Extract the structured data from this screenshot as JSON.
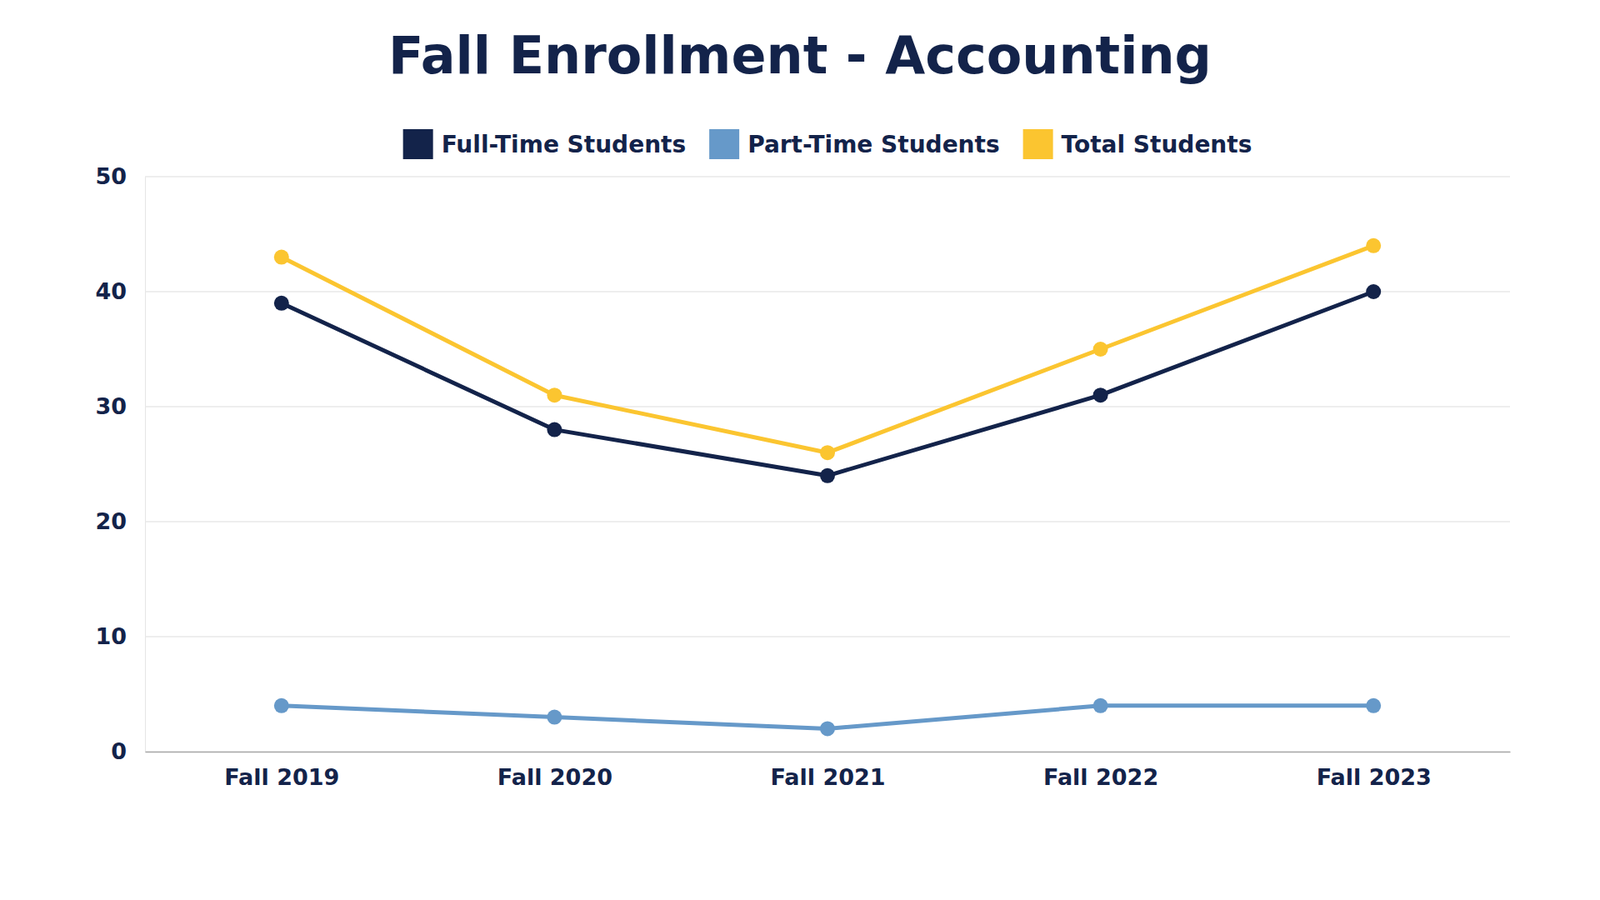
{
  "chart_data": {
    "type": "line",
    "title": "Fall Enrollment - Accounting",
    "categories": [
      "Fall 2019",
      "Fall 2020",
      "Fall 2021",
      "Fall 2022",
      "Fall 2023"
    ],
    "series": [
      {
        "name": "Full-Time Students",
        "color": "#13234a",
        "values": [
          39,
          28,
          24,
          31,
          40
        ]
      },
      {
        "name": "Part-Time Students",
        "color": "#6699c9",
        "values": [
          4,
          3,
          2,
          4,
          4
        ]
      },
      {
        "name": "Total Students",
        "color": "#fbc530",
        "values": [
          43,
          31,
          26,
          35,
          44
        ]
      }
    ],
    "ylim": [
      0,
      50
    ],
    "yticks": [
      0,
      10,
      20,
      30,
      40,
      50
    ],
    "grid": true,
    "marker": "circle"
  }
}
